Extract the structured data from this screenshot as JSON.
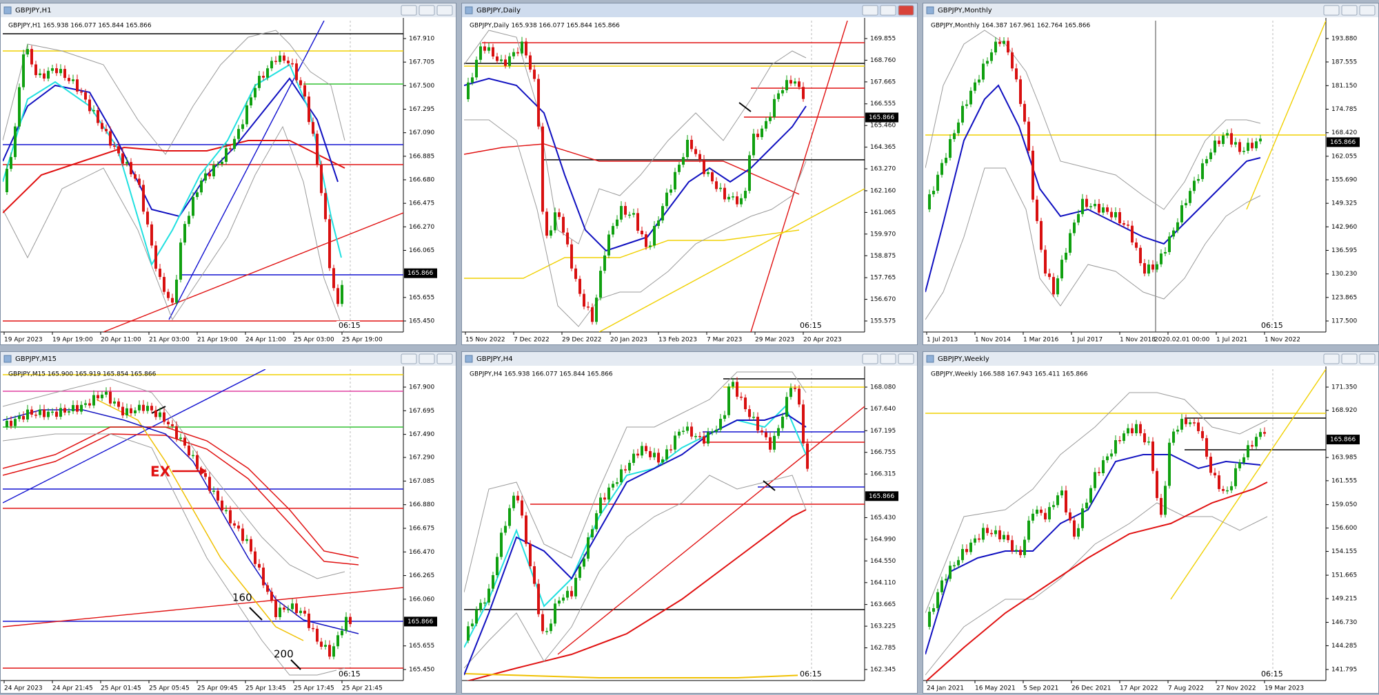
{
  "windows": [
    {
      "title": "GBPJPY,H1",
      "info": "GBPJPY,H1  165.938 166.077 165.844 165.866",
      "price_ticks": [
        "167.910",
        "167.705",
        "167.500",
        "167.295",
        "167.090",
        "166.885",
        "166.680",
        "166.475",
        "166.270",
        "166.065",
        "165.655",
        "165.450"
      ],
      "current_price": "165.866",
      "time_labels": [
        "19 Apr 2023",
        "19 Apr 19:00",
        "20 Apr 11:00",
        "21 Apr 03:00",
        "21 Apr 19:00",
        "24 Apr 11:00",
        "25 Apr 03:00",
        "25 Apr 19:00"
      ],
      "time_marker": "06:15"
    },
    {
      "title": "GBPJPY,Daily",
      "info": "GBPJPY,Daily  165.938 166.077 165.844 165.866",
      "price_ticks": [
        "169.855",
        "168.760",
        "167.665",
        "166.555",
        "165.460",
        "164.365",
        "163.270",
        "162.160",
        "161.065",
        "159.970",
        "158.875",
        "157.765",
        "156.670",
        "155.575"
      ],
      "current_price": "165.866",
      "time_labels": [
        "15 Nov 2022",
        "7 Dec 2022",
        "29 Dec 2022",
        "20 Jan 2023",
        "13 Feb 2023",
        "7 Mar 2023",
        "29 Mar 2023",
        "20 Apr 2023"
      ],
      "time_marker": "06:15"
    },
    {
      "title": "GBPJPY,Monthly",
      "info": "GBPJPY,Monthly  164.387 167.961 162.764 165.866",
      "price_ticks": [
        "193.880",
        "187.555",
        "181.150",
        "174.785",
        "168.420",
        "162.055",
        "155.690",
        "149.325",
        "142.960",
        "136.595",
        "130.230",
        "123.865",
        "117.500"
      ],
      "current_price": "165.866",
      "time_labels": [
        "1 Jul 2013",
        "1 Nov 2014",
        "1 Mar 2016",
        "1 Jul 2017",
        "1 Nov 2018",
        "2020.02.01 00:00",
        "1 Jul 2021",
        "1 Nov 2022"
      ],
      "time_marker": "06:15"
    },
    {
      "title": "GBPJPY,M15",
      "info": "GBPJPY,M15  165.900 165.919 165.854 165.866",
      "price_ticks": [
        "167.900",
        "167.695",
        "167.490",
        "167.290",
        "167.085",
        "166.880",
        "166.675",
        "166.470",
        "166.265",
        "166.060",
        "165.655",
        "165.450"
      ],
      "current_price": "165.866",
      "time_labels": [
        "24 Apr 2023",
        "24 Apr 21:45",
        "25 Apr 01:45",
        "25 Apr 05:45",
        "25 Apr 09:45",
        "25 Apr 13:45",
        "25 Apr 17:45",
        "25 Apr 21:45"
      ],
      "time_marker": "06:15",
      "annotations": [
        "EX",
        "160",
        "200"
      ]
    },
    {
      "title": "GBPJPY,H4",
      "info": "GBPJPY,H4  165.938 166.077 165.844 165.866",
      "price_ticks": [
        "168.080",
        "167.640",
        "167.195",
        "166.755",
        "166.315",
        "165.430",
        "164.990",
        "164.550",
        "164.110",
        "163.665",
        "163.225",
        "162.785",
        "162.345"
      ],
      "current_price": "165.866",
      "time_labels": [],
      "time_marker": "06:15"
    },
    {
      "title": "GBPJPY,Weekly",
      "info": "GBPJPY,Weekly  166.588 167.943 165.411 165.866",
      "price_ticks": [
        "171.350",
        "168.920",
        "163.985",
        "161.555",
        "159.050",
        "156.600",
        "154.155",
        "151.665",
        "149.215",
        "146.730",
        "144.285",
        "141.795"
      ],
      "current_price": "165.866",
      "time_labels": [
        "24 Jan 2021",
        "16 May 2021",
        "5 Sep 2021",
        "26 Dec 2021",
        "17 Apr 2022",
        "7 Aug 2022",
        "27 Nov 2022",
        "19 Mar 2023"
      ],
      "time_marker": "06:15"
    }
  ]
}
